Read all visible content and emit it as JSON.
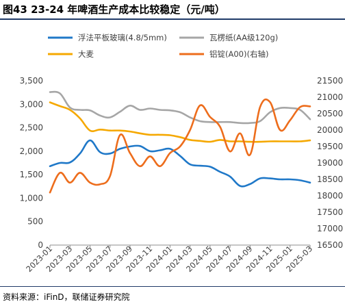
{
  "title": "图43 23-24 年啤酒生产成本比较稳定（元/吨）",
  "source": "资料来源：iFinD，联储证券研究院",
  "chart_data": {
    "type": "line",
    "x": [
      "2023-01",
      "2023-02",
      "2023-03",
      "2023-04",
      "2023-05",
      "2023-06",
      "2023-07",
      "2023-08",
      "2023-09",
      "2023-10",
      "2023-11",
      "2023-12",
      "2024-01",
      "2024-02",
      "2024-03",
      "2024-04",
      "2024-05",
      "2024-06",
      "2024-07",
      "2024-08",
      "2024-09",
      "2024-10",
      "2024-11",
      "2024-12",
      "2025-01",
      "2025-02",
      "2025-03"
    ],
    "xticks": [
      "2023-01",
      "2023-03",
      "2023-05",
      "2023-07",
      "2023-09",
      "2023-11",
      "2024-01",
      "2024-03",
      "2024-05",
      "2024-07",
      "2024-09",
      "2024-11",
      "2025-01",
      "2025-03"
    ],
    "left_axis": {
      "range": [
        0,
        3500
      ],
      "ticks": [
        "0",
        "500",
        "1,000",
        "1,500",
        "2,000",
        "2,500",
        "3,000",
        "3,500"
      ]
    },
    "right_axis": {
      "range": [
        16500,
        21500
      ],
      "ticks": [
        "16500",
        "17000",
        "17500",
        "18000",
        "18500",
        "19000",
        "19500",
        "20000",
        "20500",
        "21000",
        "21500"
      ]
    },
    "legend_position": "top",
    "series": [
      {
        "name": "浮法平板玻璃(4.8/5mm)",
        "axis": "left",
        "color": "#1f78c8",
        "values": [
          1680,
          1750,
          1760,
          1950,
          2230,
          1980,
          1950,
          2050,
          2100,
          2110,
          2000,
          2020,
          2050,
          1900,
          1720,
          1690,
          1670,
          1560,
          1460,
          1260,
          1300,
          1420,
          1420,
          1400,
          1400,
          1380,
          1330
        ]
      },
      {
        "name": "瓦楞纸(AA级120g)",
        "axis": "left",
        "color": "#a6a6a6",
        "values": [
          3260,
          3230,
          2930,
          2880,
          2870,
          2760,
          2720,
          2840,
          2970,
          2880,
          2910,
          2880,
          2870,
          2830,
          2720,
          2640,
          2620,
          2620,
          2620,
          2600,
          2600,
          2640,
          2830,
          2920,
          2920,
          2880,
          2680
        ]
      },
      {
        "name": "大麦",
        "axis": "left",
        "color": "#f5a800",
        "values": [
          3040,
          2960,
          2880,
          2700,
          2440,
          2460,
          2440,
          2440,
          2420,
          2380,
          2350,
          2350,
          2340,
          2300,
          2240,
          2220,
          2200,
          2240,
          2210,
          2210,
          2200,
          2200,
          2210,
          2210,
          2210,
          2210,
          2230
        ]
      },
      {
        "name": "铝锭(A00)(右轴)",
        "axis": "right",
        "color": "#ed6d1c",
        "values": [
          18100,
          18700,
          18400,
          18700,
          18400,
          18350,
          18600,
          19850,
          19300,
          18900,
          19200,
          18900,
          19300,
          19500,
          20000,
          20750,
          20400,
          20100,
          19350,
          19900,
          19250,
          20700,
          20850,
          20000,
          20300,
          20700,
          20720
        ]
      }
    ]
  }
}
